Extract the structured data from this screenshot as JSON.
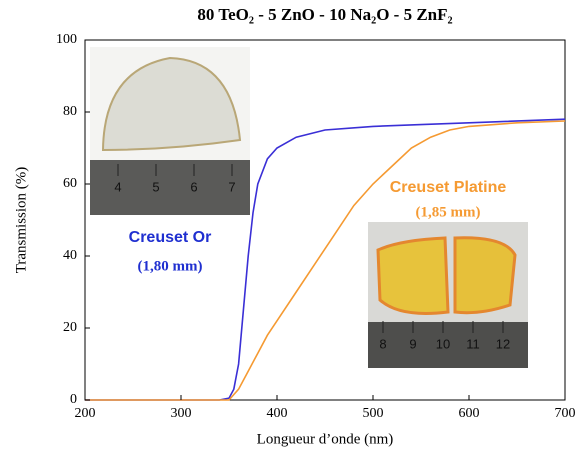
{
  "chart_data": {
    "type": "line",
    "title": "80 TeO₂ - 5 ZnO - 10 Na₂O - 5 ZnF₂",
    "x_label": "Longueur d’onde (nm)",
    "y_label": "Transmission (%)",
    "xlim": [
      200,
      700
    ],
    "xticks": [
      200,
      300,
      400,
      500,
      600,
      700
    ],
    "ylim": [
      0,
      100
    ],
    "yticks": [
      0,
      20,
      40,
      60,
      80,
      100
    ],
    "series": [
      {
        "name": "Creuset Or",
        "color": "#3a2fd6",
        "x": [
          200,
          340,
          350,
          355,
          360,
          365,
          370,
          375,
          380,
          390,
          400,
          420,
          450,
          500,
          550,
          600,
          700
        ],
        "values": [
          0,
          0,
          0.5,
          3,
          10,
          25,
          40,
          52,
          60,
          67,
          70,
          73,
          75,
          76,
          76.5,
          77,
          78
        ]
      },
      {
        "name": "Creuset Platine",
        "color": "#f59a32",
        "x": [
          200,
          350,
          360,
          370,
          380,
          390,
          400,
          420,
          440,
          460,
          480,
          500,
          520,
          540,
          560,
          580,
          600,
          650,
          700
        ],
        "values": [
          0,
          0,
          3,
          8,
          13,
          18,
          22,
          30,
          38,
          46,
          54,
          60,
          65,
          70,
          73,
          75,
          76,
          77,
          77.5
        ]
      }
    ],
    "annotations": [
      {
        "text": "Creuset Or",
        "color": "#1f2fd0"
      },
      {
        "text": "(1,80 mm)",
        "color": "#1f2fd0"
      },
      {
        "text": "Creuset Platine",
        "color": "#f59a32"
      },
      {
        "text": "(1,85 mm)",
        "color": "#f59a32"
      }
    ],
    "insets": [
      {
        "ruler_labels": [
          "4",
          "5",
          "6",
          "7"
        ]
      },
      {
        "ruler_labels": [
          "8",
          "9",
          "10",
          "11",
          "12"
        ]
      }
    ]
  }
}
